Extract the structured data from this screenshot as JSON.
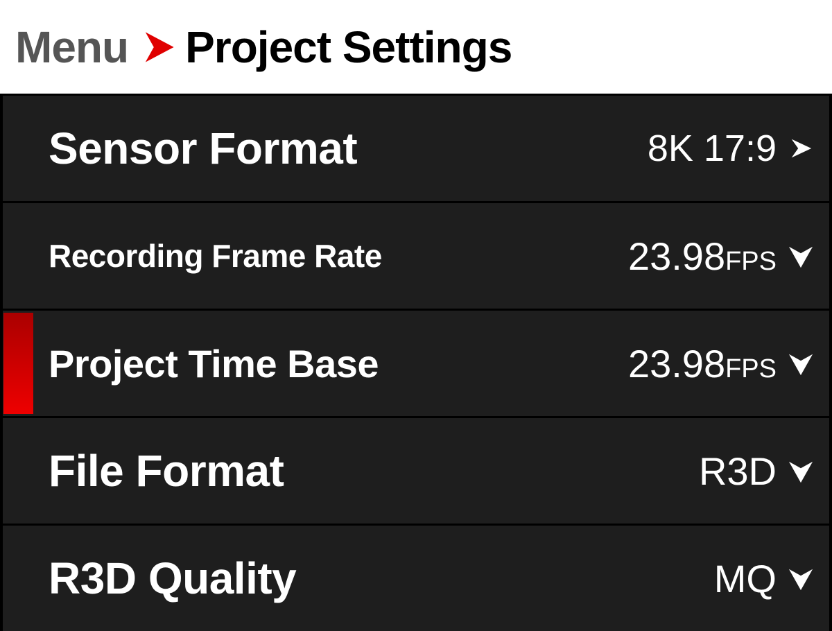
{
  "header": {
    "breadcrumb_root": "Menu",
    "title": "Project Settings",
    "accent": "#e00000"
  },
  "rows": [
    {
      "label": "Sensor Format",
      "value": "8K 17:9",
      "unit": "",
      "indicator": "chevron-right"
    },
    {
      "label": "Recording Frame Rate",
      "value": "23.98",
      "unit": "FPS",
      "indicator": "chevron-down"
    },
    {
      "label": "Project Time Base",
      "value": "23.98",
      "unit": "FPS",
      "indicator": "chevron-down",
      "selected": true
    },
    {
      "label": "File Format",
      "value": "R3D",
      "unit": "",
      "indicator": "chevron-down"
    },
    {
      "label": "R3D Quality",
      "value": "MQ",
      "unit": "",
      "indicator": "chevron-down"
    }
  ]
}
